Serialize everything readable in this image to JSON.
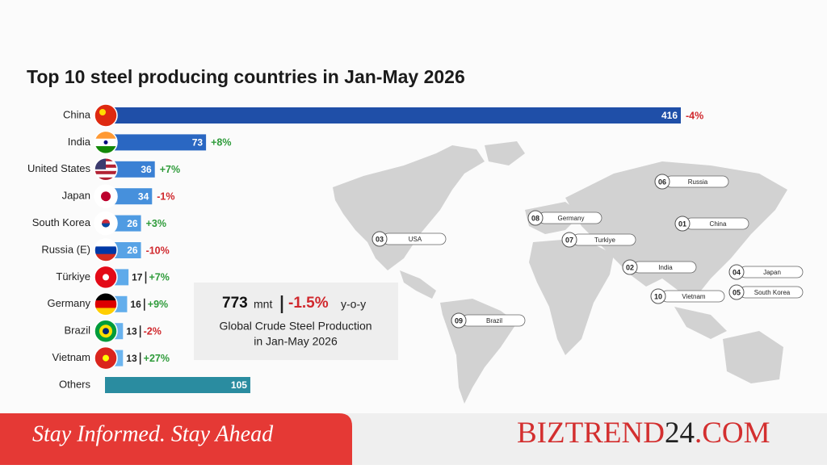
{
  "chart_data": {
    "type": "bar",
    "orientation": "horizontal",
    "title": "Top 10 steel producing countries in Jan-May 2026",
    "categories": [
      "China",
      "India",
      "United States",
      "Japan",
      "South Korea",
      "Russia (E)",
      "Türkiye",
      "Germany",
      "Brazil",
      "Vietnam",
      "Others"
    ],
    "values": [
      416,
      73,
      36,
      34,
      26,
      26,
      17,
      16,
      13,
      13,
      105
    ],
    "change_labels": [
      "-4%",
      "+8%",
      "+7%",
      "-1%",
      "+3%",
      "-10%",
      "+7%",
      "+9%",
      "-2%",
      "+27%",
      null
    ],
    "colors": [
      "#1f4fa8",
      "#2a67c2",
      "#3a80d4",
      "#4690dc",
      "#4f9be2",
      "#57a3e6",
      "#5eaaea",
      "#63aeec",
      "#68b2ee",
      "#6cb5ef",
      "#2a8ca0"
    ]
  },
  "summary": {
    "value": 773,
    "unit": "mnt",
    "change": "-1.5%",
    "change_suffix": "y-o-y",
    "caption_lines": [
      "Global Crude Steel Production",
      "in Jan-May 2026"
    ]
  },
  "map_labels": [
    {
      "rank": "06",
      "name": "Russia"
    },
    {
      "rank": "08",
      "name": "Germany"
    },
    {
      "rank": "01",
      "name": "China"
    },
    {
      "rank": "03",
      "name": "USA"
    },
    {
      "rank": "07",
      "name": "Turkiye"
    },
    {
      "rank": "02",
      "name": "India"
    },
    {
      "rank": "04",
      "name": "Japan"
    },
    {
      "rank": "05",
      "name": "South Korea"
    },
    {
      "rank": "10",
      "name": "Vietnam"
    },
    {
      "rank": "09",
      "name": "Brazil"
    }
  ],
  "footer": {
    "tagline": "Stay Informed. Stay Ahead",
    "brand": [
      "BIZTREND",
      "24",
      ".COM"
    ]
  }
}
